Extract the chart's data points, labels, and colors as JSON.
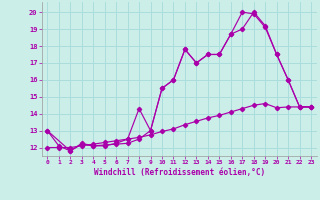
{
  "bg_color": "#cceee8",
  "line_color": "#aa00aa",
  "grid_color": "#aadddd",
  "xlabel": "Windchill (Refroidissement éolien,°C)",
  "xlim": [
    -0.5,
    23.5
  ],
  "ylim": [
    11.5,
    20.6
  ],
  "yticks": [
    12,
    13,
    14,
    15,
    16,
    17,
    18,
    19,
    20
  ],
  "xticks": [
    0,
    1,
    2,
    3,
    4,
    5,
    6,
    7,
    8,
    9,
    10,
    11,
    12,
    13,
    14,
    15,
    16,
    17,
    18,
    19,
    20,
    21,
    22,
    23
  ],
  "line1_x": [
    0,
    1,
    2,
    3,
    4,
    5,
    6,
    7,
    8,
    9,
    10,
    11,
    12,
    13,
    14,
    15,
    16,
    17,
    18,
    19,
    20,
    21,
    22,
    23
  ],
  "line1_y": [
    13.0,
    12.1,
    11.8,
    12.2,
    12.1,
    12.15,
    12.2,
    12.25,
    12.5,
    13.0,
    15.5,
    16.0,
    17.8,
    17.0,
    17.5,
    17.5,
    18.7,
    20.0,
    19.9,
    19.1,
    17.5,
    16.0,
    14.4,
    14.4
  ],
  "line2_x": [
    0,
    2,
    3,
    4,
    5,
    6,
    7,
    8,
    9,
    10,
    11,
    12,
    13,
    14,
    15,
    16,
    17,
    18,
    19,
    20,
    21,
    22,
    23
  ],
  "line2_y": [
    13.0,
    11.8,
    12.25,
    12.1,
    12.1,
    12.25,
    12.5,
    14.3,
    13.0,
    15.5,
    16.0,
    17.8,
    17.0,
    17.5,
    17.5,
    18.7,
    19.0,
    20.0,
    19.2,
    17.5,
    16.0,
    14.4,
    14.4
  ],
  "line3_x": [
    0,
    1,
    2,
    3,
    4,
    5,
    6,
    7,
    8,
    9,
    10,
    11,
    12,
    13,
    14,
    15,
    16,
    17,
    18,
    19,
    20,
    21,
    22,
    23
  ],
  "line3_y": [
    12.0,
    12.0,
    12.0,
    12.1,
    12.2,
    12.3,
    12.4,
    12.5,
    12.6,
    12.75,
    12.95,
    13.1,
    13.35,
    13.55,
    13.75,
    13.9,
    14.1,
    14.3,
    14.5,
    14.6,
    14.35,
    14.4,
    14.4,
    14.4
  ]
}
